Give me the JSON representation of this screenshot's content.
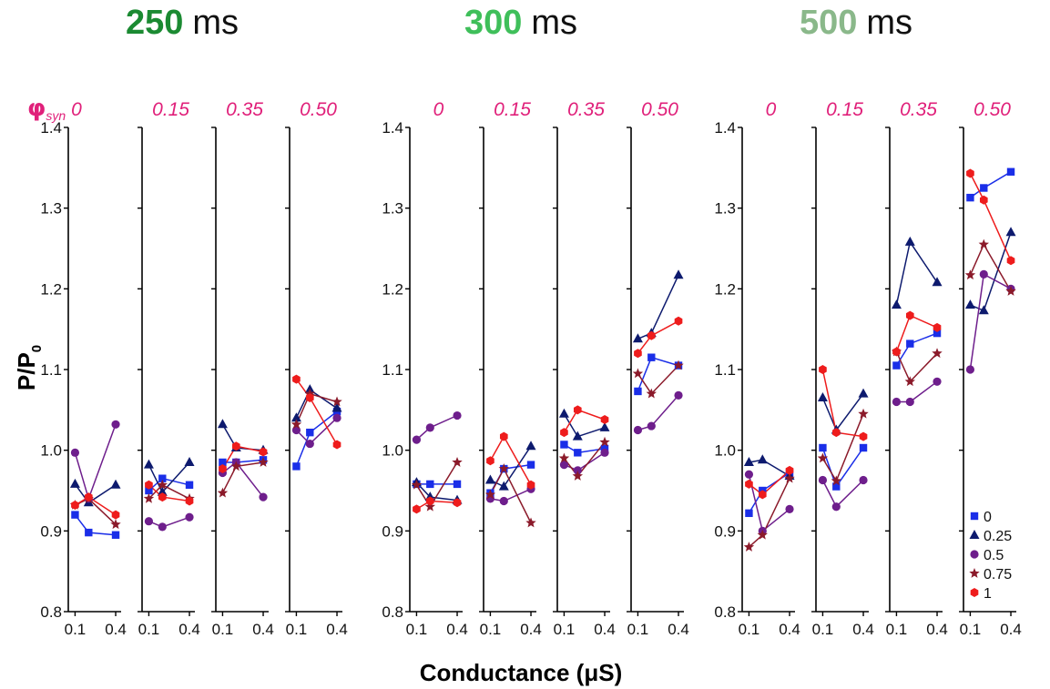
{
  "chart_data": {
    "type": "scatter",
    "xlabel": "Conductance (μS)",
    "ylabel": "P/P",
    "ylabel_subscript": "0",
    "phi_label": "φ",
    "phi_label_subscript": "syn",
    "ylim": [
      0.8,
      1.4
    ],
    "yticks": [
      0.8,
      0.9,
      1.0,
      1.1,
      1.2,
      1.3,
      1.4
    ],
    "ytick_labels": [
      "0.8",
      "0.9",
      "1.0",
      "1.1",
      "1.2",
      "1.3",
      "1.4"
    ],
    "xlim": [
      0.05,
      0.42
    ],
    "xticks": [
      0.1,
      0.4
    ],
    "xtick_labels": [
      "0.1",
      "0.4"
    ],
    "x": [
      0.1,
      0.2,
      0.4
    ],
    "grid": false,
    "legend_position": "bottom-right",
    "series_styles": [
      {
        "name": "0",
        "color": "#1a2ee8",
        "marker": "square"
      },
      {
        "name": "0.25",
        "color": "#0d1a6e",
        "marker": "triangle"
      },
      {
        "name": "0.5",
        "color": "#6e1e8c",
        "marker": "circle"
      },
      {
        "name": "0.75",
        "color": "#8b1a2a",
        "marker": "star"
      },
      {
        "name": "1",
        "color": "#ee1c1c",
        "marker": "hexagon"
      }
    ],
    "groups": [
      {
        "title_number": "250",
        "title_unit": "ms",
        "title_color": "#1b8a32",
        "phases": [
          {
            "phi": "0",
            "series": [
              [
                0.92,
                0.898,
                0.895
              ],
              [
                0.958,
                0.935,
                0.957
              ],
              [
                0.997,
                0.94,
                1.032
              ],
              [
                0.932,
                0.94,
                0.908
              ],
              [
                0.932,
                0.942,
                0.92
              ]
            ]
          },
          {
            "phi": "0.15",
            "series": [
              [
                0.95,
                0.965,
                0.957
              ],
              [
                0.982,
                0.948,
                0.985
              ],
              [
                0.912,
                0.905,
                0.917
              ],
              [
                0.94,
                0.957,
                0.94
              ],
              [
                0.957,
                0.942,
                0.937
              ]
            ]
          },
          {
            "phi": "0.35",
            "series": [
              [
                0.985,
                0.985,
                0.988
              ],
              [
                1.032,
                1.003,
                1.0
              ],
              [
                0.972,
                0.985,
                0.942
              ],
              [
                0.947,
                0.98,
                0.985
              ],
              [
                0.977,
                1.005,
                0.998
              ]
            ]
          },
          {
            "phi": "0.50",
            "series": [
              [
                0.98,
                1.022,
                1.048
              ],
              [
                1.04,
                1.075,
                1.052
              ],
              [
                1.025,
                1.008,
                1.04
              ],
              [
                1.032,
                1.07,
                1.06
              ],
              [
                1.088,
                1.065,
                1.007
              ]
            ]
          }
        ]
      },
      {
        "title_number": "300",
        "title_unit": "ms",
        "title_color": "#3fbf5a",
        "phases": [
          {
            "phi": "0",
            "series": [
              [
                0.958,
                0.958,
                0.958
              ],
              [
                0.96,
                0.942,
                0.938
              ],
              [
                1.013,
                1.028,
                1.043
              ],
              [
                0.957,
                0.93,
                0.985
              ],
              [
                0.927,
                0.937,
                0.935
              ]
            ]
          },
          {
            "phi": "0.15",
            "series": [
              [
                0.947,
                0.977,
                0.982
              ],
              [
                0.963,
                0.955,
                1.005
              ],
              [
                0.94,
                0.937,
                0.952
              ],
              [
                0.945,
                0.977,
                0.91
              ],
              [
                0.987,
                1.017,
                0.957
              ]
            ]
          },
          {
            "phi": "0.35",
            "series": [
              [
                1.007,
                0.997,
                1.002
              ],
              [
                1.045,
                1.017,
                1.028
              ],
              [
                0.982,
                0.975,
                0.997
              ],
              [
                0.99,
                0.968,
                1.01
              ],
              [
                1.022,
                1.05,
                1.038
              ]
            ]
          },
          {
            "phi": "0.50",
            "series": [
              [
                1.073,
                1.115,
                1.105
              ],
              [
                1.138,
                1.145,
                1.217
              ],
              [
                1.025,
                1.03,
                1.068
              ],
              [
                1.095,
                1.07,
                1.105
              ],
              [
                1.12,
                1.142,
                1.16
              ]
            ]
          }
        ]
      },
      {
        "title_number": "500",
        "title_unit": "ms",
        "title_color": "#8ab88a",
        "phases": [
          {
            "phi": "0",
            "series": [
              [
                0.922,
                0.95,
                0.972
              ],
              [
                0.985,
                0.988,
                0.968
              ],
              [
                0.97,
                0.9,
                0.927
              ],
              [
                0.88,
                0.895,
                0.965
              ],
              [
                0.958,
                0.945,
                0.975
              ]
            ]
          },
          {
            "phi": "0.15",
            "series": [
              [
                1.003,
                0.955,
                1.003
              ],
              [
                1.065,
                1.025,
                1.07
              ],
              [
                0.963,
                0.93,
                0.963
              ],
              [
                0.99,
                0.962,
                1.045
              ],
              [
                1.1,
                1.022,
                1.017
              ]
            ]
          },
          {
            "phi": "0.35",
            "series": [
              [
                1.105,
                1.132,
                1.145
              ],
              [
                1.18,
                1.258,
                1.208
              ],
              [
                1.06,
                1.06,
                1.085
              ],
              [
                1.122,
                1.085,
                1.12
              ],
              [
                1.122,
                1.167,
                1.152
              ]
            ]
          },
          {
            "phi": "0.50",
            "series": [
              [
                1.313,
                1.325,
                1.345
              ],
              [
                1.18,
                1.173,
                1.27
              ],
              [
                1.1,
                1.218,
                1.2
              ],
              [
                1.217,
                1.255,
                1.197
              ],
              [
                1.343,
                1.31,
                1.235
              ]
            ]
          }
        ]
      }
    ]
  },
  "phi_color": "#e0207a"
}
